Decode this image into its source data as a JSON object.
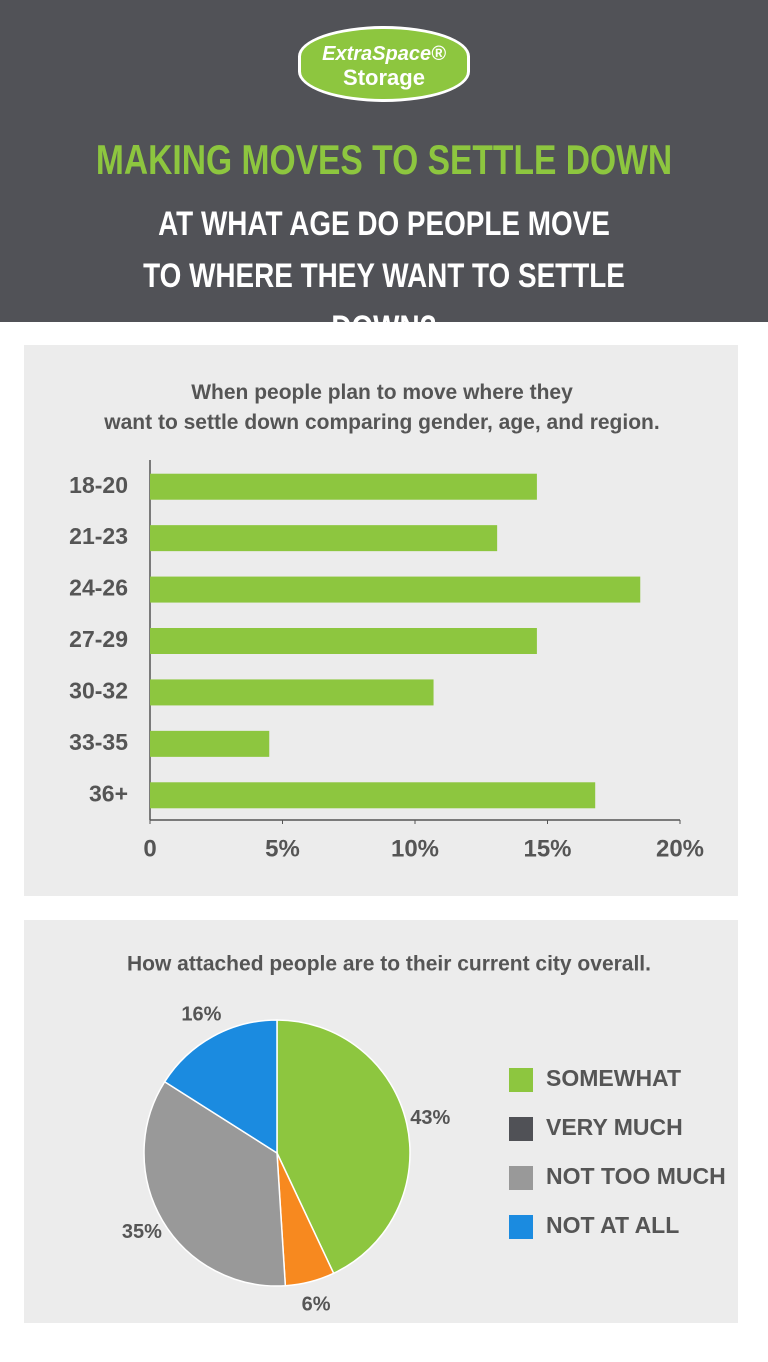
{
  "header": {
    "logo_line1": "ExtraSpace®",
    "logo_line2": "Storage",
    "title": "MAKING MOVES TO SETTLE DOWN",
    "subtitle": "AT WHAT AGE DO PEOPLE MOVE TO WHERE THEY WANT TO SETTLE DOWN?"
  },
  "chart_data": [
    {
      "type": "bar",
      "orientation": "horizontal",
      "title": "When people plan to move where they want to settle down comparing gender, age, and region.",
      "categories": [
        "18-20",
        "21-23",
        "24-26",
        "27-29",
        "30-32",
        "33-35",
        "36+"
      ],
      "values": [
        14.6,
        13.1,
        18.5,
        14.6,
        10.7,
        4.5,
        16.8
      ],
      "color": "#8dc63f",
      "xlim": [
        0,
        20
      ],
      "xticks": [
        0,
        {
          "value": 5,
          "label": "5%"
        },
        {
          "value": 10,
          "label": "10%"
        },
        {
          "value": 15,
          "label": "15%"
        },
        {
          "value": 20,
          "label": "20%"
        }
      ]
    },
    {
      "type": "pie",
      "title": "How attached people are to their current city overall.",
      "categories": [
        "SOMEWHAT",
        "VERY MUCH",
        "NOT TOO MUCH",
        "NOT AT ALL"
      ],
      "values": [
        43,
        6,
        35,
        16
      ],
      "value_labels": [
        "43%",
        "6%",
        "35%",
        "16%"
      ],
      "colors": [
        "#8dc63f",
        "#f7891f",
        "#999999",
        "#1b8be0"
      ],
      "legend_colors": [
        "#8dc63f",
        "#505156",
        "#999999",
        "#1b8be0"
      ],
      "legend": "right"
    }
  ]
}
